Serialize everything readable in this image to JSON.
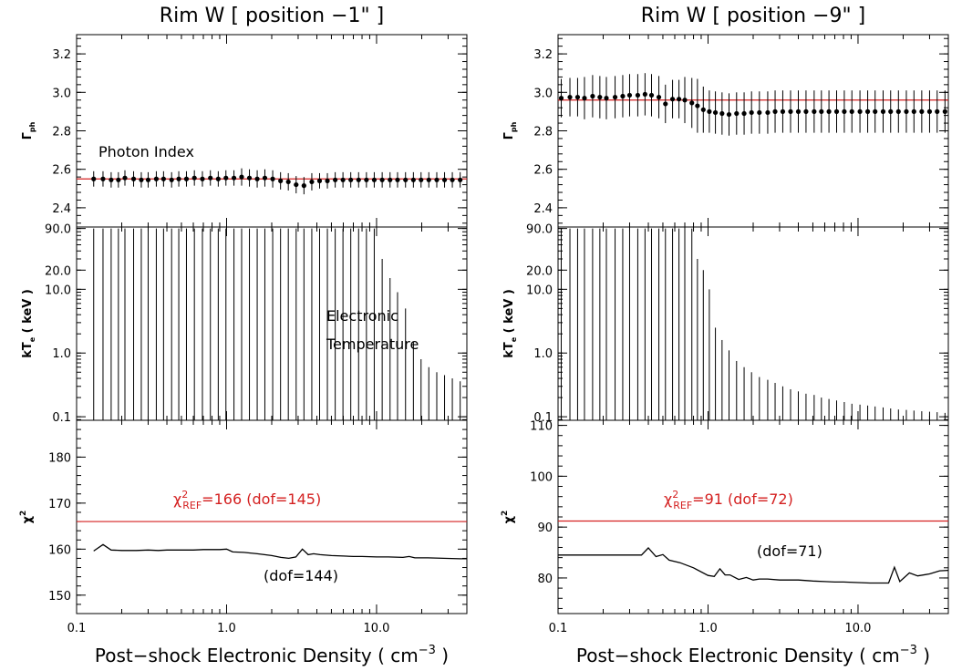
{
  "colors": {
    "ink": "#000000",
    "ref": "#d42020"
  },
  "xaxis": {
    "label": "Post−shock Electronic Density ( cm",
    "label_sup": "−3",
    "label_end": " )",
    "range": [
      0.1,
      40
    ],
    "log": true,
    "ticks": [
      0.1,
      1.0,
      10.0
    ],
    "tick_labels": [
      "0.1",
      "1.0",
      "10.0"
    ]
  },
  "chart_data": [
    {
      "id": "left",
      "type": "line",
      "title": "Rim W [ position −1\" ]",
      "panels": {
        "gamma": {
          "ylabel_main": "Γ",
          "ylabel_sub": "ph",
          "ylim": [
            2.3,
            3.3
          ],
          "ticks": [
            2.4,
            2.6,
            2.8,
            3.0,
            3.2
          ],
          "tick_labels": [
            "2.4",
            "2.6",
            "2.8",
            "3.0",
            "3.2"
          ],
          "ref": 2.55,
          "annotation": "Photon Index",
          "x": [
            0.13,
            0.15,
            0.17,
            0.19,
            0.21,
            0.24,
            0.27,
            0.3,
            0.34,
            0.38,
            0.43,
            0.48,
            0.54,
            0.61,
            0.69,
            0.78,
            0.88,
            0.99,
            1.12,
            1.26,
            1.42,
            1.6,
            1.8,
            2.03,
            2.29,
            2.58,
            2.91,
            3.28,
            3.7,
            4.17,
            4.7,
            5.3,
            5.97,
            6.73,
            7.59,
            8.56,
            9.65,
            10.9,
            12.3,
            13.8,
            15.6,
            17.6,
            19.8,
            22.3,
            25.2,
            28.4,
            32.0,
            36.1
          ],
          "y": [
            2.55,
            2.55,
            2.545,
            2.545,
            2.555,
            2.55,
            2.545,
            2.545,
            2.55,
            2.55,
            2.545,
            2.55,
            2.55,
            2.555,
            2.55,
            2.555,
            2.55,
            2.555,
            2.555,
            2.56,
            2.555,
            2.55,
            2.555,
            2.55,
            2.54,
            2.535,
            2.52,
            2.515,
            2.535,
            2.54,
            2.54,
            2.545,
            2.545,
            2.545,
            2.545,
            2.545,
            2.545,
            2.545,
            2.545,
            2.545,
            2.545,
            2.545,
            2.545,
            2.545,
            2.545,
            2.545,
            2.545,
            2.545
          ],
          "err": [
            0.04,
            0.04,
            0.04,
            0.04,
            0.04,
            0.04,
            0.04,
            0.04,
            0.04,
            0.04,
            0.04,
            0.04,
            0.04,
            0.04,
            0.04,
            0.04,
            0.04,
            0.04,
            0.04,
            0.045,
            0.045,
            0.045,
            0.045,
            0.045,
            0.045,
            0.045,
            0.045,
            0.045,
            0.045,
            0.04,
            0.04,
            0.04,
            0.04,
            0.04,
            0.04,
            0.04,
            0.04,
            0.04,
            0.04,
            0.04,
            0.04,
            0.04,
            0.04,
            0.04,
            0.04,
            0.04,
            0.04,
            0.04
          ]
        },
        "kte": {
          "ylabel_main": "kT",
          "ylabel_sub": "e",
          "ylabel_end": " ( keV )",
          "log": true,
          "ylim": [
            0.088,
            95
          ],
          "ticks": [
            0.1,
            1.0,
            10.0,
            20.0,
            90.0
          ],
          "tick_labels": [
            "0.1",
            "1.0",
            "10.0",
            "20.0",
            "90.0"
          ],
          "annotation_lines": [
            "Electronic",
            "Temperature"
          ],
          "x": [
            0.13,
            0.15,
            0.17,
            0.19,
            0.21,
            0.24,
            0.27,
            0.3,
            0.34,
            0.38,
            0.43,
            0.48,
            0.54,
            0.61,
            0.69,
            0.78,
            0.88,
            0.99,
            1.12,
            1.26,
            1.42,
            1.6,
            1.8,
            2.03,
            2.29,
            2.58,
            2.91,
            3.28,
            3.7,
            4.17,
            4.7,
            5.3,
            5.97,
            6.73,
            7.59,
            8.56,
            9.65,
            10.9,
            12.3,
            13.8,
            15.6,
            17.6,
            19.8,
            22.3,
            25.2,
            28.4,
            32.0,
            36.1
          ],
          "upper": [
            90,
            90,
            90,
            90,
            90,
            90,
            90,
            90,
            90,
            90,
            90,
            90,
            90,
            90,
            90,
            90,
            90,
            90,
            90,
            90,
            90,
            90,
            90,
            90,
            90,
            90,
            90,
            90,
            90,
            90,
            90,
            90,
            90,
            90,
            90,
            90,
            90,
            30,
            15,
            9,
            5,
            1.5,
            0.8,
            0.6,
            0.5,
            0.45,
            0.4,
            0.36
          ],
          "upper_x_dense": true
        },
        "chi2": {
          "ylabel_main": "χ",
          "ylabel_sup": "2",
          "ylim": [
            146,
            188
          ],
          "ticks": [
            150,
            160,
            170,
            180
          ],
          "tick_labels": [
            "150",
            "160",
            "170",
            "180"
          ],
          "ref": 166,
          "ref_label_main": "χ",
          "ref_label_sup": "2",
          "ref_label_sub": "REF",
          "ref_label_rest": "=166 (dof=145)",
          "annotation": "(dof=144)",
          "x": [
            0.13,
            0.15,
            0.17,
            0.2,
            0.25,
            0.3,
            0.35,
            0.4,
            0.5,
            0.6,
            0.7,
            0.8,
            0.9,
            1.0,
            1.1,
            1.3,
            1.6,
            2.0,
            2.3,
            2.6,
            2.9,
            3.2,
            3.5,
            3.8,
            4.2,
            5.0,
            6.0,
            7.0,
            8.0,
            10.0,
            12.0,
            15.0,
            16.5,
            18.0,
            22.0,
            28.0,
            36.0,
            40.0
          ],
          "y": [
            159.6,
            161.0,
            159.8,
            159.7,
            159.7,
            159.8,
            159.7,
            159.8,
            159.8,
            159.8,
            159.9,
            159.9,
            159.9,
            160.0,
            159.4,
            159.3,
            159.0,
            158.6,
            158.2,
            158.0,
            158.3,
            160.0,
            158.8,
            159.0,
            158.8,
            158.6,
            158.5,
            158.4,
            158.4,
            158.3,
            158.3,
            158.2,
            158.4,
            158.1,
            158.1,
            158.0,
            157.9,
            157.9
          ]
        }
      }
    },
    {
      "id": "right",
      "type": "line",
      "title": "Rim W [ position −9\" ]",
      "panels": {
        "gamma": {
          "ylabel_main": "Γ",
          "ylabel_sub": "ph",
          "ylim": [
            2.3,
            3.3
          ],
          "ticks": [
            2.4,
            2.6,
            2.8,
            3.0,
            3.2
          ],
          "tick_labels": [
            "2.4",
            "2.6",
            "2.8",
            "3.0",
            "3.2"
          ],
          "ref": 2.96,
          "x": [
            0.105,
            0.12,
            0.135,
            0.15,
            0.17,
            0.19,
            0.21,
            0.24,
            0.27,
            0.3,
            0.34,
            0.38,
            0.42,
            0.47,
            0.52,
            0.58,
            0.64,
            0.7,
            0.78,
            0.85,
            0.93,
            1.02,
            1.12,
            1.24,
            1.38,
            1.55,
            1.74,
            1.95,
            2.2,
            2.5,
            2.8,
            3.15,
            3.55,
            4.0,
            4.5,
            5.1,
            5.7,
            6.4,
            7.2,
            8.1,
            9.1,
            10.3,
            11.6,
            13.0,
            14.7,
            16.5,
            18.6,
            21.0,
            23.6,
            26.6,
            30.0,
            33.7,
            38.0
          ],
          "y": [
            2.97,
            2.975,
            2.975,
            2.97,
            2.98,
            2.975,
            2.97,
            2.975,
            2.98,
            2.985,
            2.985,
            2.99,
            2.985,
            2.975,
            2.94,
            2.965,
            2.965,
            2.96,
            2.945,
            2.93,
            2.91,
            2.9,
            2.895,
            2.89,
            2.885,
            2.89,
            2.89,
            2.895,
            2.895,
            2.895,
            2.9,
            2.9,
            2.9,
            2.9,
            2.9,
            2.9,
            2.9,
            2.9,
            2.9,
            2.9,
            2.9,
            2.9,
            2.9,
            2.9,
            2.9,
            2.9,
            2.9,
            2.9,
            2.9,
            2.9,
            2.9,
            2.9,
            2.9
          ],
          "err": [
            0.1,
            0.1,
            0.1,
            0.11,
            0.11,
            0.11,
            0.11,
            0.11,
            0.11,
            0.11,
            0.11,
            0.11,
            0.11,
            0.11,
            0.1,
            0.1,
            0.1,
            0.12,
            0.13,
            0.14,
            0.12,
            0.11,
            0.11,
            0.11,
            0.11,
            0.11,
            0.11,
            0.11,
            0.11,
            0.11,
            0.11,
            0.11,
            0.11,
            0.11,
            0.11,
            0.11,
            0.11,
            0.11,
            0.11,
            0.11,
            0.11,
            0.11,
            0.11,
            0.11,
            0.11,
            0.11,
            0.11,
            0.11,
            0.11,
            0.11,
            0.11,
            0.11,
            0.11
          ]
        },
        "kte": {
          "ylabel_main": "kT",
          "ylabel_sub": "e",
          "ylabel_end": " ( keV )",
          "log": true,
          "ylim": [
            0.088,
            95
          ],
          "ticks": [
            0.1,
            1.0,
            10.0,
            20.0,
            90.0
          ],
          "tick_labels": [
            "0.1",
            "1.0",
            "10.0",
            "20.0",
            "90.0"
          ],
          "x": [
            0.105,
            0.12,
            0.135,
            0.15,
            0.17,
            0.19,
            0.21,
            0.24,
            0.27,
            0.3,
            0.34,
            0.38,
            0.42,
            0.47,
            0.52,
            0.58,
            0.64,
            0.7,
            0.78,
            0.85,
            0.93,
            1.02,
            1.12,
            1.24,
            1.38,
            1.55,
            1.74,
            1.95,
            2.2,
            2.5,
            2.8,
            3.15,
            3.55,
            4.0,
            4.5,
            5.1,
            5.7,
            6.4,
            7.2,
            8.1,
            9.1,
            10.3,
            11.6,
            13.0,
            14.7,
            16.5,
            18.6,
            21.0,
            23.6,
            26.6,
            30.0,
            33.7,
            38.0
          ],
          "upper": [
            90,
            90,
            90,
            90,
            90,
            90,
            90,
            90,
            90,
            90,
            90,
            90,
            90,
            90,
            90,
            90,
            90,
            90,
            90,
            30,
            20,
            10,
            2.5,
            1.6,
            1.1,
            0.75,
            0.6,
            0.5,
            0.42,
            0.38,
            0.34,
            0.3,
            0.27,
            0.25,
            0.23,
            0.22,
            0.2,
            0.19,
            0.18,
            0.17,
            0.16,
            0.155,
            0.15,
            0.145,
            0.14,
            0.135,
            0.13,
            0.128,
            0.125,
            0.122,
            0.12,
            0.118,
            0.115
          ]
        },
        "chi2": {
          "ylabel_main": "χ",
          "ylabel_sup": "2",
          "ylim": [
            73,
            111
          ],
          "ticks": [
            80,
            90,
            100,
            110
          ],
          "tick_labels": [
            "80",
            "90",
            "100",
            "110"
          ],
          "ref": 91.2,
          "ref_label_main": "χ",
          "ref_label_sup": "2",
          "ref_label_sub": "REF",
          "ref_label_rest": "=91 (dof=72)",
          "annotation": "(dof=71)",
          "x": [
            0.1,
            0.15,
            0.2,
            0.3,
            0.36,
            0.4,
            0.45,
            0.5,
            0.55,
            0.65,
            0.8,
            1.0,
            1.1,
            1.2,
            1.3,
            1.4,
            1.6,
            1.8,
            2.0,
            2.2,
            2.5,
            3.0,
            3.5,
            4.0,
            5.0,
            6.0,
            7.0,
            8.0,
            10.0,
            12.0,
            14.0,
            16.0,
            17.5,
            19.0,
            22.0,
            25.0,
            30.0,
            35.0,
            40.0
          ],
          "y": [
            84.5,
            84.5,
            84.5,
            84.5,
            84.5,
            85.9,
            84.2,
            84.6,
            83.5,
            83.0,
            82.0,
            80.5,
            80.3,
            81.8,
            80.6,
            80.6,
            79.7,
            80.1,
            79.6,
            79.8,
            79.8,
            79.6,
            79.6,
            79.6,
            79.4,
            79.3,
            79.2,
            79.2,
            79.1,
            79.0,
            79.0,
            79.0,
            82.1,
            79.3,
            81.0,
            80.4,
            80.8,
            81.4,
            81.5
          ]
        }
      }
    }
  ]
}
